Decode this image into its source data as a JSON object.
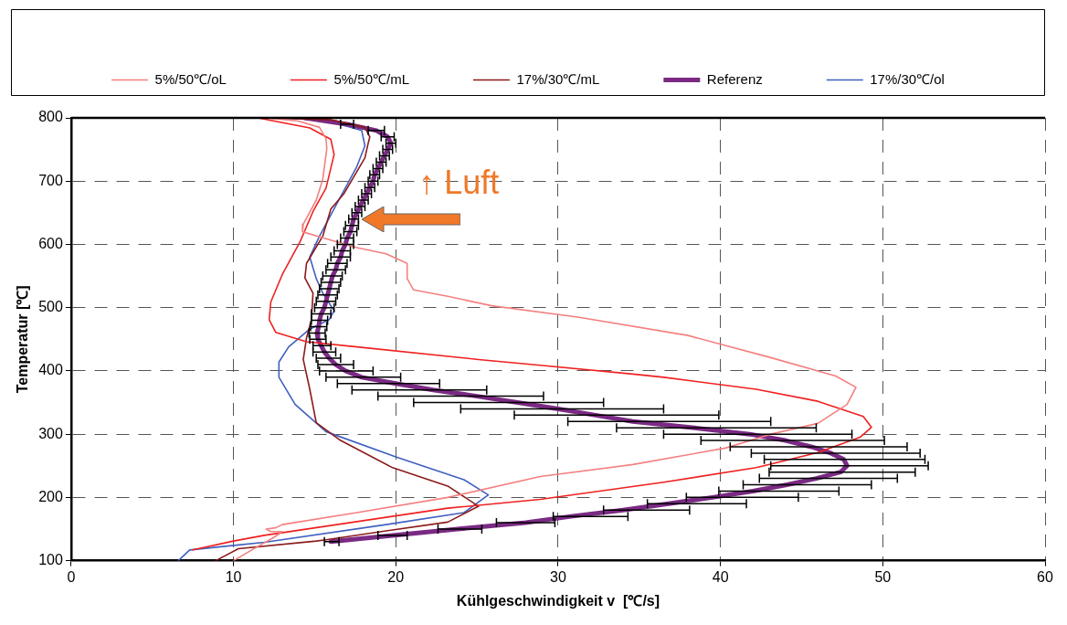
{
  "chart_data": {
    "type": "line",
    "xlabel": "Kühlgeschwindigkeit v  [℃/s]",
    "ylabel": "Temperatur [℃]",
    "xlim": [
      0,
      60
    ],
    "xticks": [
      0,
      10,
      20,
      30,
      40,
      50,
      60
    ],
    "ylim": [
      100,
      800
    ],
    "yticks": [
      100,
      200,
      300,
      400,
      500,
      600,
      700,
      800
    ],
    "grid": true,
    "legend": "top",
    "marker": "none",
    "line_style": "solid",
    "annotations": [
      {
        "text": "↑ Luft",
        "x": 17.8,
        "y": 640
      }
    ],
    "series": [
      {
        "name": "5%/50℃/oL",
        "color": "#f48080",
        "x": [
          12.0,
          14.0,
          15.3,
          15.7,
          15.75,
          15.5,
          15.1,
          14.3,
          14.25,
          15.7,
          17.6,
          19.4,
          20.7,
          20.7,
          21.1,
          23.2,
          25.9,
          31.2,
          38.0,
          43.1,
          47.1,
          48.35,
          47.8,
          46.0,
          43.1,
          40.3,
          34.6,
          28.9,
          23.2,
          17.6,
          13.0,
          12.6,
          12.0,
          12.3,
          13.0,
          12.5,
          11.2,
          10.0
        ],
        "values": [
          800,
          795,
          785,
          767,
          751,
          703,
          670,
          632,
          620,
          609,
          595,
          585,
          570,
          546,
          528,
          518,
          503,
          485,
          456,
          421,
          392,
          374,
          347,
          317,
          300,
          278,
          252,
          233,
          200,
          176,
          157,
          152,
          150,
          146,
          146,
          137,
          118,
          100
        ]
      },
      {
        "name": "5%/50℃/mL",
        "color": "#f02020",
        "x": [
          11.5,
          14.7,
          16.0,
          16.2,
          15.7,
          14.9,
          14.1,
          13.0,
          12.3,
          12.2,
          12.6,
          14.5,
          17.6,
          25.1,
          28.9,
          34.6,
          36.5,
          42.2,
          46.0,
          48.8,
          49.3,
          48.6,
          46.0,
          42.2,
          36.5,
          28.9,
          23.2,
          11.9,
          10.0,
          7.5
        ],
        "values": [
          800,
          784,
          766,
          742,
          689,
          652,
          604,
          552,
          509,
          481,
          461,
          446,
          438,
          418,
          409,
          395,
          390,
          371,
          352,
          328,
          311,
          295,
          271,
          247,
          224,
          197,
          183,
          140,
          131,
          117
        ]
      },
      {
        "name": "17%/30℃/mL",
        "color": "#8b1a1a",
        "x": [
          12.0,
          16.0,
          18.1,
          18.4,
          18.3,
          18.1,
          16.8,
          16.0,
          15.5,
          14.5,
          14.4,
          14.9,
          14.8,
          14.5,
          14.3,
          14.7,
          15.1,
          16.6,
          19.8,
          23.2,
          25.1,
          23.2,
          19.4,
          15.7,
          15.1,
          10.3,
          8.9
        ],
        "values": [
          800,
          797,
          785,
          770,
          760,
          737,
          680,
          656,
          613,
          570,
          547,
          523,
          481,
          452,
          418,
          371,
          318,
          290,
          247,
          218,
          186,
          161,
          147,
          133,
          131,
          119,
          100
        ]
      },
      {
        "name": "Referenz",
        "color": "#7b2a84",
        "x": [
          14.4,
          17.0,
          18.8,
          19.5,
          19.7,
          19.5,
          19.3,
          19.1,
          18.9,
          18.7,
          18.6,
          18.4,
          18.2,
          18.0,
          17.8,
          17.6,
          17.4,
          17.3,
          17.2,
          17.0,
          16.9,
          16.7,
          16.6,
          16.4,
          16.3,
          16.1,
          16.0,
          15.9,
          15.8,
          15.7,
          15.6,
          15.4,
          15.3,
          15.25,
          15.15,
          15.2,
          15.4,
          15.6,
          15.9,
          16.3,
          16.9,
          17.9,
          20.0,
          22.3,
          25.0,
          27.5,
          30.0,
          32.3,
          34.6,
          38.4,
          41.8,
          44.0,
          45.6,
          46.8,
          47.6,
          47.8,
          47.4,
          45.9,
          44.1,
          42.0,
          39.5,
          36.8,
          34.0,
          30.8,
          28.0,
          23.8,
          19.8,
          16.0
        ],
        "values": [
          800,
          790,
          780,
          770,
          760,
          750,
          740,
          730,
          720,
          710,
          700,
          690,
          680,
          670,
          660,
          650,
          640,
          630,
          620,
          610,
          600,
          590,
          580,
          570,
          560,
          550,
          540,
          530,
          520,
          510,
          500,
          490,
          480,
          470,
          460,
          450,
          440,
          430,
          420,
          410,
          400,
          390,
          380,
          370,
          360,
          350,
          340,
          330,
          320,
          310,
          300,
          290,
          280,
          270,
          260,
          250,
          240,
          230,
          220,
          210,
          200,
          190,
          180,
          170,
          160,
          150,
          140,
          130
        ],
        "xerrors": [
          null,
          0.4,
          0.5,
          0.4,
          0.3,
          0.3,
          0.3,
          0.3,
          0.3,
          0.3,
          0.3,
          0.3,
          0.3,
          0.3,
          0.3,
          0.3,
          0.3,
          0.4,
          0.4,
          0.4,
          0.5,
          0.5,
          0.6,
          0.6,
          0.6,
          0.6,
          0.6,
          0.6,
          0.6,
          0.6,
          0.6,
          0.6,
          0.5,
          0.5,
          0.5,
          0.5,
          [
            14.9,
            16.0
          ],
          [
            14.9,
            16.3
          ],
          [
            15.1,
            16.6
          ],
          [
            15.2,
            17.4
          ],
          [
            15.3,
            18.6
          ],
          [
            15.7,
            20.3
          ],
          [
            16.4,
            22.7
          ],
          [
            17.3,
            25.6
          ],
          [
            18.9,
            29.1
          ],
          [
            21.1,
            32.8
          ],
          [
            24.0,
            36.5
          ],
          [
            27.3,
            39.9
          ],
          [
            30.6,
            43.1
          ],
          [
            33.6,
            45.9
          ],
          [
            36.5,
            48.1
          ],
          [
            38.8,
            50.1
          ],
          [
            40.6,
            51.5
          ],
          [
            41.9,
            52.3
          ],
          [
            42.7,
            52.6
          ],
          [
            43.1,
            52.8
          ],
          [
            43.0,
            52.0
          ],
          [
            42.4,
            50.9
          ],
          [
            41.4,
            49.3
          ],
          [
            39.9,
            47.3
          ],
          [
            37.9,
            44.8
          ],
          [
            35.5,
            41.6
          ],
          [
            32.8,
            38.1
          ],
          [
            29.7,
            34.3
          ],
          [
            26.2,
            29.8
          ],
          [
            22.6,
            25.3
          ],
          [
            18.9,
            20.7
          ],
          [
            15.6,
            16.5
          ]
        ]
      },
      {
        "name": "17%/30℃/ol",
        "color": "#4060c0",
        "x": [
          13.4,
          16.0,
          17.9,
          18.1,
          17.6,
          16.4,
          15.3,
          14.7,
          15.1,
          15.5,
          16.2,
          15.9,
          14.7,
          13.4,
          12.8,
          12.8,
          13.8,
          15.7,
          20.0,
          24.2,
          25.7,
          24.2,
          19.4,
          11.9,
          7.3,
          6.6
        ],
        "values": [
          800,
          794,
          780,
          756,
          723,
          666,
          613,
          580,
          546,
          523,
          495,
          481,
          466,
          438,
          414,
          390,
          347,
          304,
          264,
          228,
          204,
          176,
          157,
          129,
          117,
          100
        ]
      }
    ]
  }
}
